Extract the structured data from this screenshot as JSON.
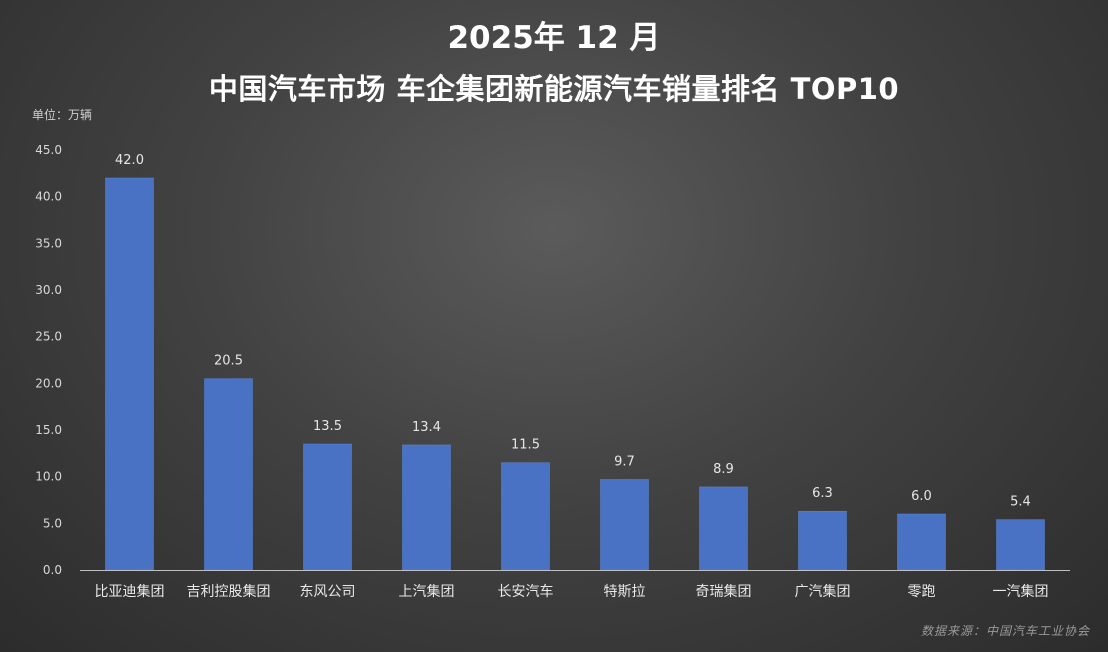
{
  "title_line1": "2025年 12 月",
  "title_line2": "中国汽车市场  车企集团新能源汽车销量排名  TOP10",
  "unit_label": "单位：万辆",
  "source": "数据来源：中国汽车工业协会",
  "colors": {
    "bar": "#4a72c4",
    "bar_edge": "#5b86d8",
    "axis": "#bfbfbf"
  },
  "chart_data": {
    "type": "bar",
    "title": "2025年 12 月 中国汽车市场  车企集团新能源汽车销量排名  TOP10",
    "xlabel": "",
    "ylabel": "单位：万辆",
    "ylim": [
      0,
      45
    ],
    "yticks": [
      "0.0",
      "5.0",
      "10.0",
      "15.0",
      "20.0",
      "25.0",
      "30.0",
      "35.0",
      "40.0",
      "45.0"
    ],
    "grid": false,
    "categories": [
      "比亚迪集团",
      "吉利控股集团",
      "东风公司",
      "上汽集团",
      "长安汽车",
      "特斯拉",
      "奇瑞集团",
      "广汽集团",
      "零跑",
      "一汽集团"
    ],
    "values": [
      42.0,
      20.5,
      13.5,
      13.4,
      11.5,
      9.7,
      8.9,
      6.3,
      6.0,
      5.4
    ],
    "value_labels": [
      "42.0",
      "20.5",
      "13.5",
      "13.4",
      "11.5",
      "9.7",
      "8.9",
      "6.3",
      "6.0",
      "5.4"
    ]
  }
}
